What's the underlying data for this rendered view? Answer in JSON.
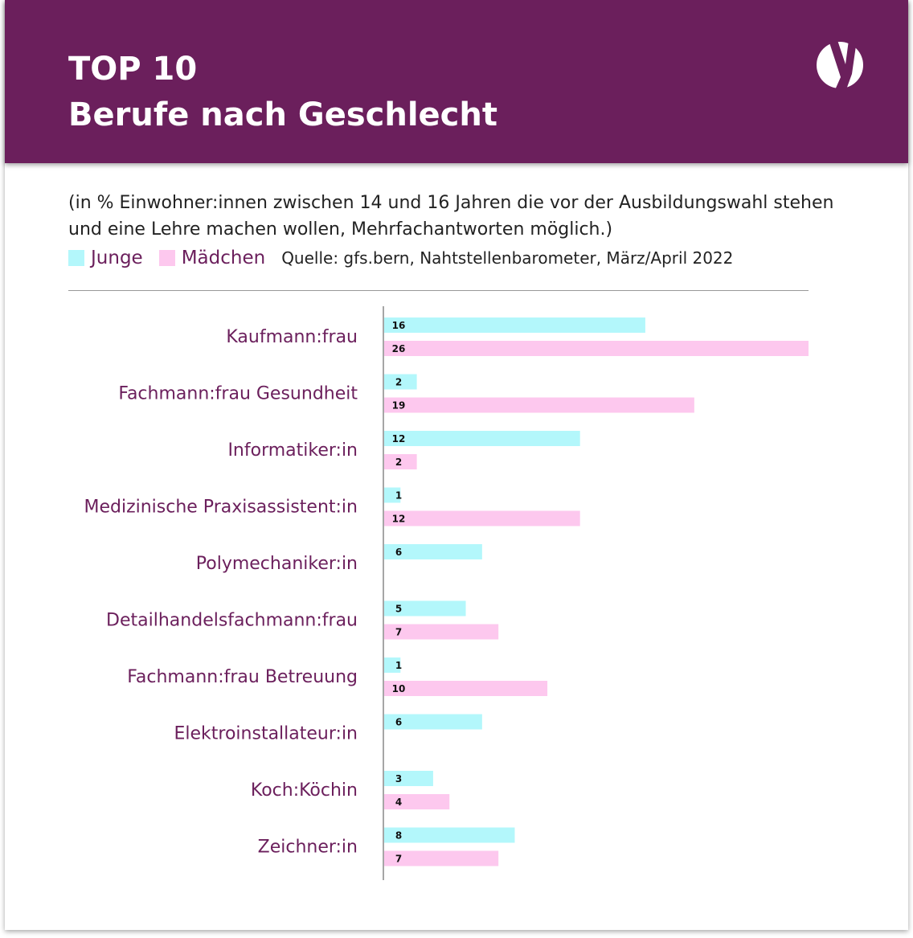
{
  "header": {
    "title_line1": "TOP 10",
    "title_line2": "Berufe nach Geschlecht"
  },
  "colors": {
    "brand": "#6b1f5c",
    "junge": "#b3f7fb",
    "maedchen": "#fdc8ee"
  },
  "subtitle": "(in % Einwohner:innen zwischen 14 und 16 Jahren die vor der Ausbildungswahl stehen und eine Lehre machen wollen, Mehrfachantworten möglich.)",
  "source": "Quelle: gfs.bern, Nahtstellenbarometer, März/April 2022",
  "chart_data": {
    "type": "bar",
    "orientation": "horizontal",
    "categories": [
      "Kaufmann:frau",
      "Fachmann:frau Gesundheit",
      "Informatiker:in",
      "Medizinische Praxisassistent:in",
      "Polymechaniker:in",
      "Detailhandelsfachmann:frau",
      "Fachmann:frau Betreuung",
      "Elektroinstallateur:in",
      "Koch:Köchin",
      "Zeichner:in"
    ],
    "series": [
      {
        "name": "Junge",
        "color": "#b3f7fb",
        "values": [
          16,
          2,
          12,
          1,
          6,
          5,
          1,
          6,
          3,
          8
        ]
      },
      {
        "name": "Mädchen",
        "color": "#fdc8ee",
        "values": [
          26,
          19,
          2,
          12,
          null,
          7,
          10,
          null,
          4,
          7
        ]
      }
    ],
    "xlim": [
      0,
      26
    ],
    "grid": false,
    "legend": "top-left",
    "data_labels": true
  }
}
